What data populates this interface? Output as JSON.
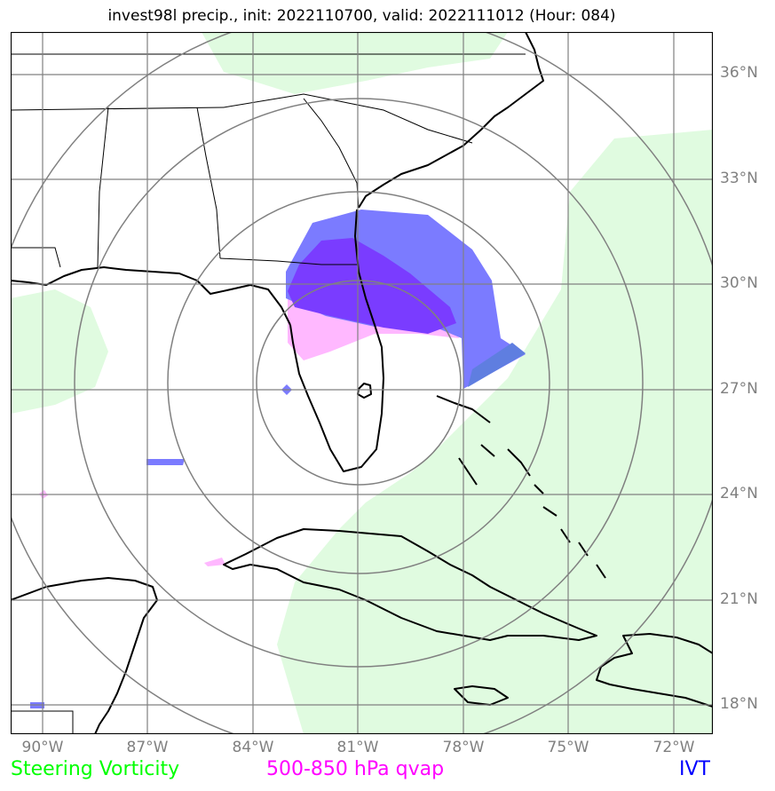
{
  "title": "invest98l precip., init: 2022110700, valid: 2022111012 (Hour: 084)",
  "lat_labels": [
    "36°N",
    "33°N",
    "30°N",
    "27°N",
    "24°N",
    "21°N",
    "18°N"
  ],
  "lon_labels": [
    "90°W",
    "87°W",
    "84°W",
    "81°W",
    "78°W",
    "75°W",
    "72°W"
  ],
  "legend": {
    "steering": {
      "label": "Steering Vorticity",
      "color": "#00ff00"
    },
    "qvap": {
      "label": "500-850 hPa qvap",
      "color": "#ff00ff"
    },
    "ivt": {
      "label": "IVT",
      "color": "#0000ff"
    }
  },
  "colors": {
    "vorticity_fill": "#e0fbe0",
    "qvap_fill": "#ffb8ff",
    "ivt_fill": "#7b7bff",
    "overlap_fill": "#7a3cff",
    "grid": "#808080",
    "coast": "#000000"
  }
}
